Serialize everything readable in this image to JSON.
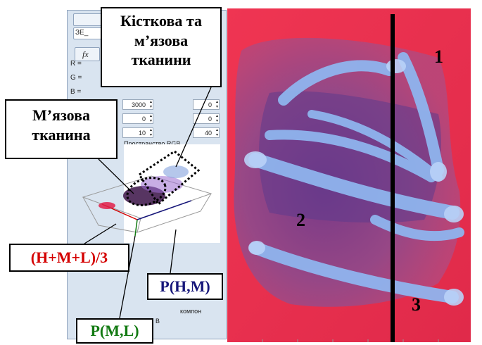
{
  "callouts": {
    "bone_muscle_tissue": [
      "Кісткова та",
      "м’язова",
      "тканини"
    ],
    "muscle_tissue": [
      "М’язова",
      "тканина"
    ]
  },
  "axis_labels": {
    "hml": "(H+M+L)/3",
    "phm": "P(H,M)",
    "pml": "P(M,L)"
  },
  "region_numbers": [
    "1",
    "2",
    "3"
  ],
  "app": {
    "text_box": "ЗЕ_",
    "fx_label": "fx",
    "channel_labels": [
      "R =",
      "G =",
      "B ="
    ],
    "spinners": [
      "3000",
      "0",
      "10"
    ],
    "spinners_right": [
      "0",
      "0",
      "40"
    ],
    "panel_title": "Пространство RGB",
    "bottom_label": "компон",
    "bottom_small": "B"
  },
  "colors": {
    "hml_label": "#d40000",
    "phm_label": "#16167a",
    "pml_label": "#127a12",
    "xray_background": "#e8304f",
    "bone_highlight": "#8fb4ee",
    "divider_line": "#000000"
  }
}
